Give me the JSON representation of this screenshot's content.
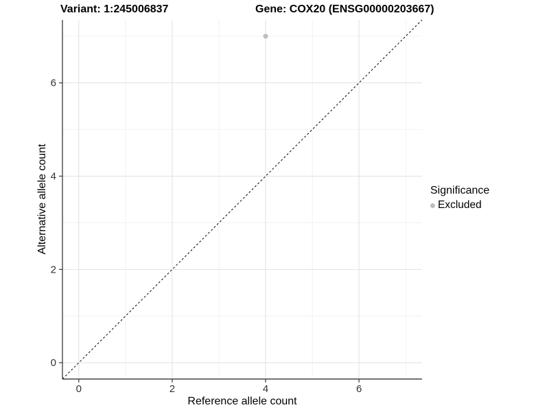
{
  "titles": {
    "variant": "Variant: 1:245006837",
    "gene": "Gene: COX20 (ENSG00000203667)"
  },
  "axes": {
    "x_label": "Reference allele count",
    "y_label": "Alternative allele count"
  },
  "legend": {
    "title": "Significance",
    "items": [
      {
        "label": "Excluded",
        "color": "#bebebe"
      }
    ]
  },
  "colors": {
    "point": "#bebebe",
    "grid_major": "#e3e3e3",
    "grid_minor": "#efefef",
    "axis": "#444444",
    "tick_label": "#333333",
    "reference_line": "#000000"
  },
  "chart_data": {
    "type": "scatter",
    "title": "Variant: 1:245006837 | Gene: COX20 (ENSG00000203667)",
    "xlabel": "Reference allele count",
    "ylabel": "Alternative allele count",
    "xlim": [
      -0.35,
      7.35
    ],
    "ylim": [
      -0.35,
      7.35
    ],
    "x_ticks": [
      0,
      2,
      4,
      6
    ],
    "y_ticks": [
      0,
      2,
      4,
      6
    ],
    "x_minor_ticks": [
      1,
      3,
      5,
      7
    ],
    "y_minor_ticks": [
      1,
      3,
      5,
      7
    ],
    "grid": true,
    "legend_position": "right",
    "series": [
      {
        "name": "Excluded",
        "color": "#bebebe",
        "points": [
          {
            "x": 4,
            "y": 7
          }
        ]
      }
    ],
    "reference_line": {
      "type": "identity",
      "from": [
        -0.35,
        -0.35
      ],
      "to": [
        7.35,
        7.35
      ],
      "style": "dashed",
      "color": "#000000"
    }
  }
}
